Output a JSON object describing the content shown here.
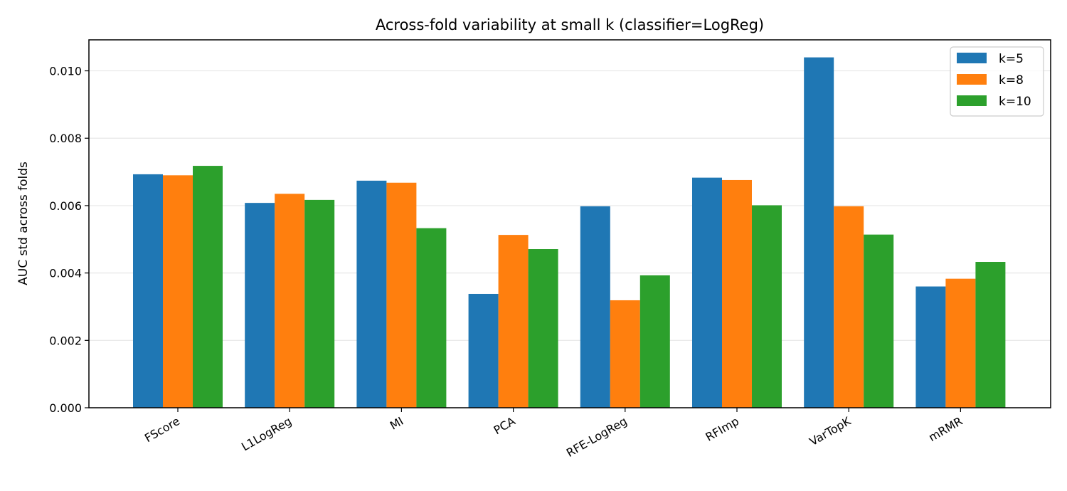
{
  "chart_data": {
    "type": "bar",
    "title": "Across-fold variability at small k (classifier=LogReg)",
    "xlabel": "",
    "ylabel": "AUC std across folds",
    "categories": [
      "FScore",
      "L1LogReg",
      "MI",
      "PCA",
      "RFE-LogReg",
      "RFImp",
      "VarTopK",
      "mRMR"
    ],
    "series": [
      {
        "name": "k=5",
        "color": "#1f77b4",
        "values": [
          0.00693,
          0.00608,
          0.00674,
          0.00338,
          0.00598,
          0.00683,
          0.0104,
          0.0036
        ]
      },
      {
        "name": "k=8",
        "color": "#ff7f0e",
        "values": [
          0.0069,
          0.00635,
          0.00668,
          0.00513,
          0.00319,
          0.00676,
          0.00598,
          0.00383
        ]
      },
      {
        "name": "k=10",
        "color": "#2ca02c",
        "values": [
          0.00718,
          0.00617,
          0.00533,
          0.00471,
          0.00393,
          0.00601,
          0.00514,
          0.00433
        ]
      }
    ],
    "ylim": [
      0,
      0.01092
    ],
    "yticks": [
      0.0,
      0.002,
      0.004,
      0.006,
      0.008,
      0.01
    ],
    "ytick_labels": [
      "0.000",
      "0.002",
      "0.004",
      "0.006",
      "0.008",
      "0.010"
    ],
    "grid": "y",
    "legend_position": "top-right"
  }
}
